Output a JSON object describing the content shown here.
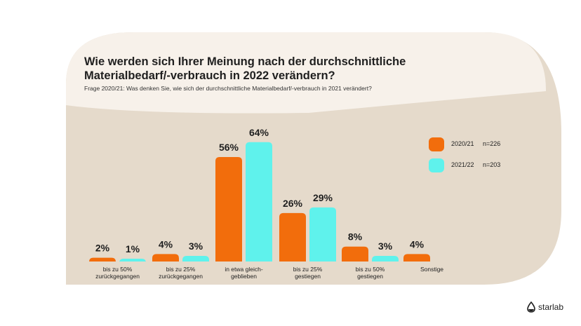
{
  "title": "Wie werden sich Ihrer Meinung nach der durchschnittliche Materialbedarf/-verbrauch in 2022 verändern?",
  "subtitle": "Frage 2020/21: Was denken Sie, wie sich der durchschnittliche Materialbedarf/-verbrauch in 2021 verändert?",
  "logo": {
    "name": "starlab",
    "icon": "starlab-drop-icon"
  },
  "colors": {
    "series1": "#f26d0c",
    "series2": "#5ff2ec",
    "background": "#e5dacb",
    "band": "#f7f1ea"
  },
  "chart_data": {
    "type": "bar",
    "categories": [
      [
        "bis zu 50%",
        "zurückgegangen"
      ],
      [
        "bis zu 25%",
        "zurückgegangen"
      ],
      [
        "in etwa gleich-",
        "geblieben"
      ],
      [
        "bis zu 25%",
        "gestiegen"
      ],
      [
        "bis zu 50%",
        "gestiegen"
      ],
      [
        "Sonstige"
      ]
    ],
    "series": [
      {
        "name": "2020/21",
        "n": "n=226",
        "color": "#f26d0c",
        "values": [
          2,
          4,
          56,
          26,
          8,
          4
        ],
        "labels": [
          "2%",
          "4%",
          "56%",
          "26%",
          "8%",
          "4%"
        ]
      },
      {
        "name": "2021/22",
        "n": "n=203",
        "color": "#5ff2ec",
        "values": [
          1,
          3,
          64,
          29,
          3,
          null
        ],
        "labels": [
          "1%",
          "3%",
          "64%",
          "29%",
          "3%",
          null
        ]
      }
    ],
    "ylim": [
      0,
      64
    ],
    "legend": "right",
    "grid": false
  }
}
